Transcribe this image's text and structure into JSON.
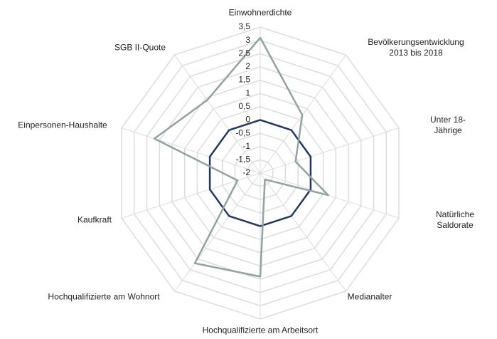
{
  "chart_data": {
    "type": "radar",
    "categories": [
      "Einwohnerdichte",
      "Bevölkerungsentwicklung\n2013 bis 2018",
      "Unter 18-Jährige",
      "Natürliche Saldorate",
      "Medianalter",
      "Hochqualifizierte am Arbeitsort",
      "Hochqualifizierte am Wohnort",
      "Kaufkraft",
      "Einpersonen-Haushalte",
      "SGB II-Quote"
    ],
    "series": [
      {
        "color": "#1f3864",
        "values": [
          0,
          0,
          0,
          0,
          0,
          0,
          0,
          0,
          0,
          0
        ]
      },
      {
        "color": "#8fa3a3",
        "values": [
          3.1,
          0.7,
          -0.6,
          0.7,
          -1.7,
          1.9,
          2.2,
          -1.1,
          2.2,
          1.4
        ]
      }
    ],
    "ylim": [
      -2,
      3.5
    ],
    "yticks": [
      -2,
      {
        "value": -1.5,
        "label": "-1,5"
      },
      -1,
      {
        "value": -0.5,
        "label": "-0,5"
      },
      0,
      {
        "value": 0.5,
        "label": "0,5"
      },
      1,
      {
        "value": 1.5,
        "label": "1,5"
      },
      2,
      {
        "value": 2.5,
        "label": "2,5"
      },
      3,
      {
        "value": 3.5,
        "label": "3,5"
      }
    ],
    "grid": true
  }
}
